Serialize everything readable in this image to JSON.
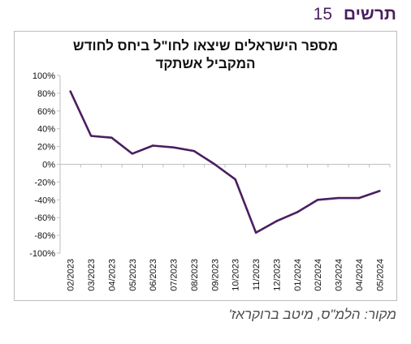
{
  "header": {
    "label": "תרשים",
    "number": "15"
  },
  "source": "מקור: הלמ\"ס, מיטב ברוקראז'",
  "colors": {
    "line": "#4a1e5f",
    "axis": "#bfbfbf",
    "text": "#111111",
    "header": "#4a1e5f"
  },
  "chart_data": {
    "type": "line",
    "title_lines": [
      "מספר הישראלים שיצאו לחו\"ל ביחס לחודש",
      "המקביל אשתקד"
    ],
    "categories": [
      "02/2023",
      "03/2023",
      "04/2023",
      "05/2023",
      "06/2023",
      "07/2023",
      "08/2023",
      "09/2023",
      "10/2023",
      "11/2023",
      "12/2023",
      "01/2024",
      "02/2024",
      "03/2024",
      "04/2024",
      "05/2024"
    ],
    "series": [
      {
        "values": [
          82,
          32,
          30,
          12,
          21,
          19,
          15,
          0,
          -17,
          -77,
          -64,
          -54,
          -40,
          -38,
          -38,
          -30
        ]
      }
    ],
    "ylim": [
      -100,
      100
    ],
    "yticks": [
      100,
      80,
      60,
      40,
      20,
      0,
      -20,
      -40,
      -60,
      -80,
      -100
    ],
    "ytick_labels": [
      "100%",
      "80%",
      "60%",
      "40%",
      "20%",
      "0%",
      "-20%",
      "-40%",
      "-60%",
      "-80%",
      "-100%"
    ],
    "grid": false,
    "legend": "none"
  }
}
